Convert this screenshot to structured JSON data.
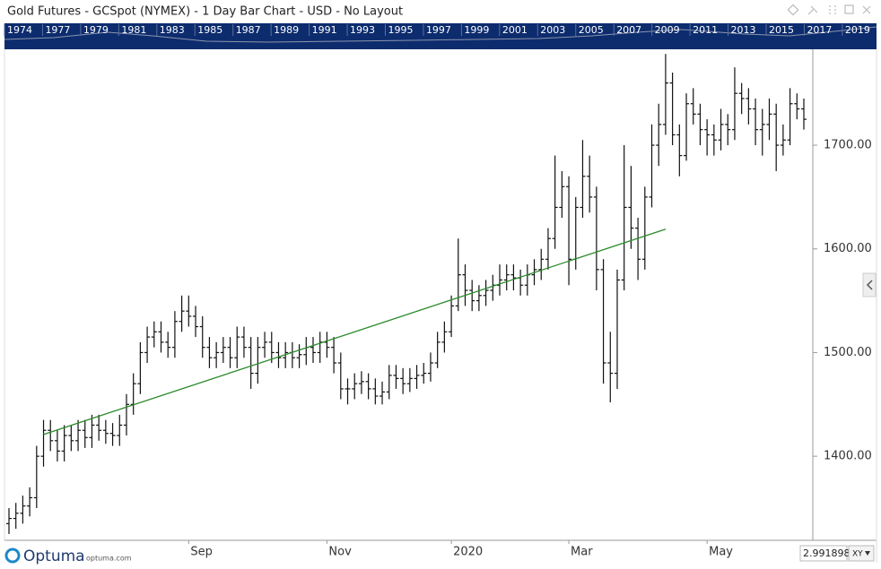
{
  "header": {
    "title": "Gold Futures - GCSpot (NYMEX) - 1 Day Bar Chart - USD - No Layout"
  },
  "timeline": {
    "years": [
      "1974",
      "1977",
      "1979",
      "1981",
      "1983",
      "1985",
      "1987",
      "1989",
      "1991",
      "1993",
      "1995",
      "1997",
      "1999",
      "2001",
      "2003",
      "2005",
      "2007",
      "2009",
      "2011",
      "2013",
      "2015",
      "2017",
      "2019"
    ]
  },
  "footer": {
    "logo": "Optuma",
    "site": "optuma.com",
    "scale_value": "2.9918985",
    "scale_mode": "XY"
  },
  "chart_data": {
    "type": "ohlc",
    "color": "#111111",
    "categories": [
      null,
      null,
      null,
      null,
      null,
      null,
      null,
      null,
      null,
      null,
      null,
      null,
      null,
      null,
      null,
      null,
      null,
      null,
      null,
      null,
      null,
      null,
      null,
      null,
      null,
      null,
      "Sep",
      null,
      null,
      null,
      null,
      null,
      null,
      null,
      null,
      null,
      null,
      null,
      null,
      null,
      null,
      null,
      null,
      null,
      null,
      null,
      "Nov",
      null,
      null,
      null,
      null,
      null,
      null,
      null,
      null,
      null,
      null,
      null,
      null,
      null,
      null,
      null,
      null,
      null,
      "2020",
      null,
      null,
      null,
      null,
      null,
      null,
      null,
      null,
      null,
      null,
      null,
      null,
      null,
      null,
      null,
      null,
      "Mar",
      null,
      null,
      null,
      null,
      null,
      null,
      null,
      null,
      null,
      null,
      null,
      null,
      null,
      null,
      null,
      null,
      null,
      null,
      null,
      "May",
      null,
      null,
      null,
      null,
      null,
      null,
      null,
      null,
      null,
      null,
      null,
      null,
      null,
      null
    ],
    "open": [
      1335,
      1340,
      1345,
      1352,
      1360,
      1400,
      1425,
      1415,
      1405,
      1420,
      1415,
      1425,
      1418,
      1430,
      1425,
      1422,
      1420,
      1430,
      1450,
      1470,
      1500,
      1515,
      1520,
      1510,
      1505,
      1530,
      1540,
      1535,
      1525,
      1505,
      1495,
      1500,
      1505,
      1495,
      1515,
      1505,
      1480,
      1505,
      1510,
      1500,
      1495,
      1500,
      1495,
      1498,
      1505,
      1500,
      1510,
      1505,
      1490,
      1465,
      1465,
      1470,
      1472,
      1465,
      1458,
      1462,
      1478,
      1475,
      1470,
      1475,
      1478,
      1480,
      1490,
      1510,
      1520,
      1545,
      1575,
      1560,
      1550,
      1555,
      1560,
      1565,
      1570,
      1575,
      1572,
      1565,
      1575,
      1580,
      1590,
      1610,
      1640,
      1660,
      1590,
      1640,
      1670,
      1650,
      1580,
      1490,
      1480,
      1570,
      1640,
      1620,
      1590,
      1650,
      1700,
      1720,
      1760,
      1710,
      1690,
      1740,
      1730,
      1715,
      1710,
      1705,
      1720,
      1715,
      1750,
      1745,
      1735,
      1715,
      1720,
      1730,
      1700,
      1705,
      1740,
      1735
    ],
    "high": [
      1350,
      1355,
      1362,
      1370,
      1410,
      1435,
      1435,
      1425,
      1430,
      1430,
      1435,
      1435,
      1440,
      1440,
      1435,
      1432,
      1440,
      1460,
      1480,
      1510,
      1525,
      1530,
      1530,
      1520,
      1540,
      1555,
      1555,
      1545,
      1535,
      1515,
      1510,
      1515,
      1515,
      1525,
      1525,
      1515,
      1515,
      1520,
      1520,
      1510,
      1510,
      1510,
      1508,
      1515,
      1515,
      1520,
      1520,
      1515,
      1500,
      1475,
      1480,
      1482,
      1480,
      1475,
      1472,
      1488,
      1488,
      1485,
      1485,
      1488,
      1490,
      1500,
      1520,
      1530,
      1555,
      1610,
      1585,
      1570,
      1565,
      1570,
      1575,
      1585,
      1585,
      1585,
      1580,
      1585,
      1590,
      1600,
      1620,
      1690,
      1675,
      1670,
      1650,
      1705,
      1690,
      1660,
      1590,
      1520,
      1580,
      1700,
      1680,
      1630,
      1660,
      1720,
      1740,
      1788,
      1770,
      1720,
      1750,
      1755,
      1740,
      1725,
      1720,
      1735,
      1730,
      1775,
      1760,
      1755,
      1745,
      1735,
      1745,
      1740,
      1720,
      1755,
      1750,
      1745
    ],
    "low": [
      1325,
      1330,
      1335,
      1342,
      1350,
      1390,
      1405,
      1395,
      1395,
      1405,
      1405,
      1408,
      1408,
      1415,
      1412,
      1410,
      1410,
      1420,
      1440,
      1460,
      1490,
      1505,
      1500,
      1495,
      1495,
      1520,
      1525,
      1515,
      1495,
      1485,
      1485,
      1490,
      1485,
      1485,
      1495,
      1465,
      1470,
      1495,
      1490,
      1485,
      1485,
      1485,
      1485,
      1488,
      1490,
      1490,
      1495,
      1480,
      1455,
      1450,
      1455,
      1460,
      1455,
      1450,
      1450,
      1455,
      1465,
      1460,
      1462,
      1465,
      1470,
      1472,
      1485,
      1500,
      1515,
      1540,
      1545,
      1540,
      1540,
      1545,
      1550,
      1555,
      1560,
      1560,
      1555,
      1555,
      1565,
      1570,
      1580,
      1600,
      1630,
      1565,
      1580,
      1630,
      1635,
      1560,
      1470,
      1452,
      1465,
      1560,
      1600,
      1570,
      1580,
      1640,
      1680,
      1710,
      1700,
      1670,
      1685,
      1720,
      1700,
      1690,
      1690,
      1695,
      1700,
      1705,
      1730,
      1720,
      1700,
      1690,
      1705,
      1675,
      1690,
      1700,
      1725,
      1715
    ],
    "close": [
      1340,
      1345,
      1352,
      1360,
      1400,
      1425,
      1415,
      1405,
      1420,
      1415,
      1425,
      1418,
      1430,
      1425,
      1422,
      1420,
      1430,
      1450,
      1470,
      1500,
      1515,
      1520,
      1510,
      1505,
      1530,
      1540,
      1535,
      1525,
      1505,
      1495,
      1500,
      1505,
      1495,
      1515,
      1505,
      1480,
      1505,
      1510,
      1500,
      1495,
      1500,
      1495,
      1498,
      1505,
      1500,
      1510,
      1505,
      1490,
      1465,
      1465,
      1470,
      1472,
      1465,
      1458,
      1462,
      1478,
      1475,
      1470,
      1475,
      1478,
      1480,
      1490,
      1510,
      1520,
      1545,
      1575,
      1560,
      1550,
      1555,
      1560,
      1565,
      1570,
      1575,
      1572,
      1565,
      1575,
      1580,
      1590,
      1610,
      1640,
      1660,
      1590,
      1640,
      1670,
      1650,
      1580,
      1490,
      1480,
      1570,
      1640,
      1620,
      1590,
      1650,
      1700,
      1720,
      1760,
      1710,
      1690,
      1740,
      1730,
      1715,
      1710,
      1705,
      1720,
      1715,
      1750,
      1745,
      1735,
      1715,
      1720,
      1730,
      1700,
      1705,
      1740,
      1735,
      1725
    ],
    "trendline": {
      "x": [
        5,
        95
      ],
      "values": [
        1421,
        1619
      ],
      "color": "#2a8a2a"
    },
    "ylim": [
      1318.9,
      1792.5
    ],
    "yticks": [
      {
        "value": 1400,
        "label": "1400.00"
      },
      {
        "value": 1500,
        "label": "1500.00"
      },
      {
        "value": 1600,
        "label": "1600.00"
      },
      {
        "value": 1700,
        "label": "1700.00"
      }
    ],
    "grid": false
  }
}
